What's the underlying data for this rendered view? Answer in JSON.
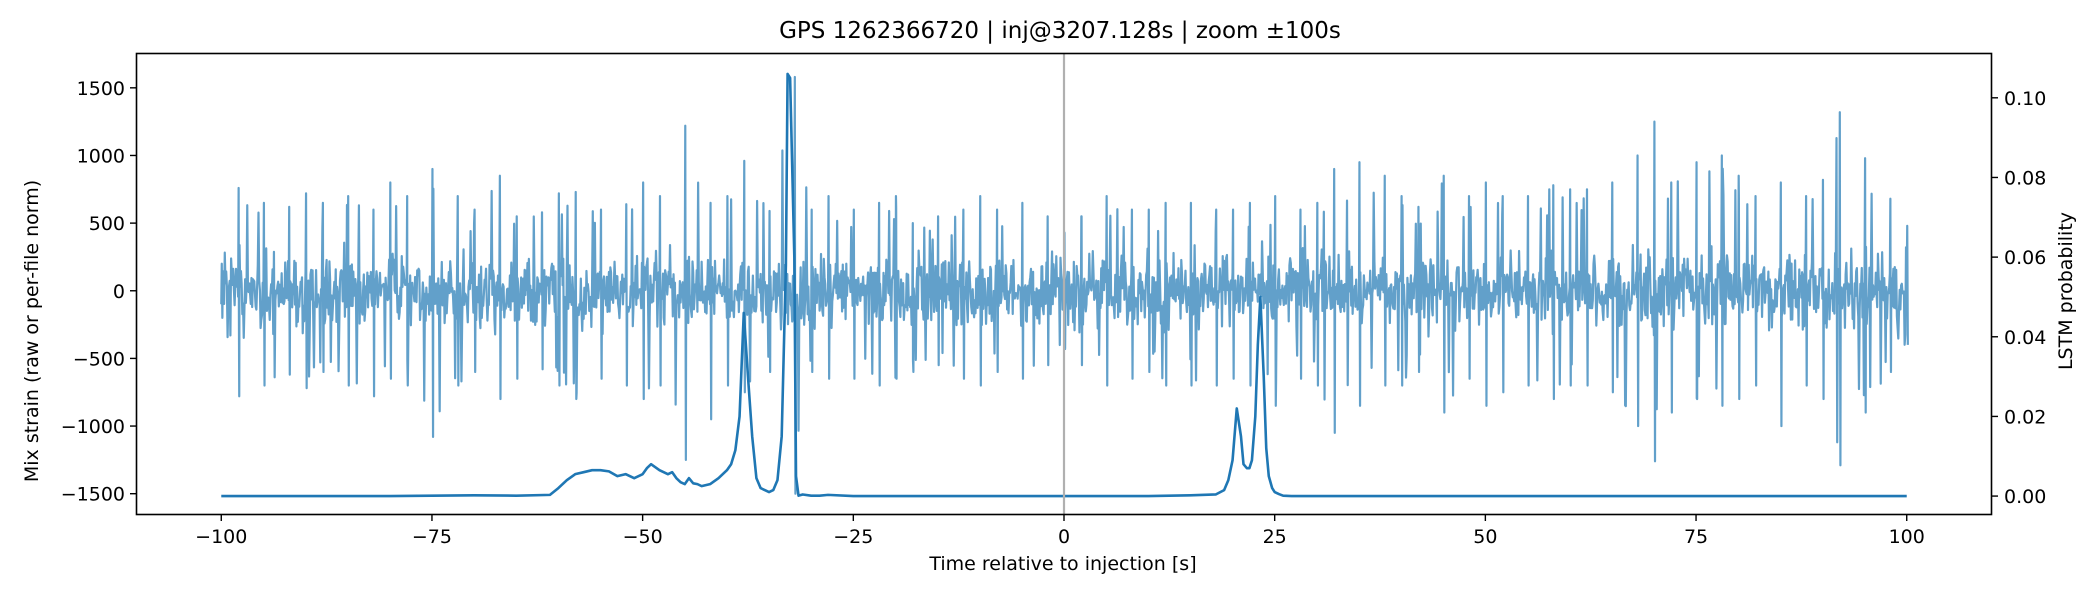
{
  "chart_data": {
    "type": "line",
    "title": "GPS 1262366720 | inj@3207.128s | zoom ±100s",
    "xlabel": "Time relative to injection [s]",
    "ylabel_left": "Mix strain (raw or per-file norm)",
    "ylabel_right": "LSTM probability",
    "xlim": [
      -110,
      110
    ],
    "ylim_left": [
      -1650,
      1750
    ],
    "ylim_right": [
      -0.0045,
      0.111
    ],
    "xticks": [
      -100,
      -75,
      -50,
      -25,
      0,
      25,
      50,
      75,
      100
    ],
    "xtick_labels": [
      "−100",
      "−75",
      "−50",
      "−25",
      "0",
      "25",
      "50",
      "75",
      "100"
    ],
    "yticks_left": [
      -1500,
      -1000,
      -500,
      0,
      500,
      1000,
      1500
    ],
    "ytick_labels_left": [
      "−1500",
      "−1000",
      "−500",
      "0",
      "500",
      "1000",
      "1500"
    ],
    "yticks_right": [
      0.0,
      0.02,
      0.04,
      0.06,
      0.08,
      0.1
    ],
    "ytick_labels_right": [
      "0.00",
      "0.02",
      "0.04",
      "0.06",
      "0.08",
      "0.10"
    ],
    "vline_x": 0,
    "grid": false,
    "colors": {
      "strain": "#1f77b4",
      "strain_opacity": 0.7,
      "lstm": "#1f77b4",
      "vline": "#b0b0b0"
    },
    "series": [
      {
        "axis": "left",
        "x_range": [
          -100,
          100
        ],
        "sample_count": 2400,
        "typical_amplitude": 300,
        "envelope": {
          "x": [
            -100,
            -98,
            -95,
            -92,
            -90,
            -88,
            -85,
            -82,
            -80,
            -78,
            -75,
            -72,
            -70,
            -67,
            -65,
            -62,
            -60,
            -58,
            -55,
            -52,
            -50,
            -48,
            -45,
            -42,
            -40,
            -38,
            -35,
            -32,
            -30,
            -28,
            -25,
            -22,
            -20,
            -18,
            -15,
            -12,
            -10,
            -8,
            -5,
            -2,
            0,
            2,
            5,
            8,
            10,
            12,
            15,
            18,
            20,
            22,
            25,
            28,
            30,
            32,
            35,
            38,
            40,
            42,
            45,
            48,
            50,
            52,
            55,
            58,
            60,
            62,
            65,
            68,
            70,
            72,
            75,
            78,
            80,
            82,
            85,
            88,
            90,
            92,
            95,
            98,
            100
          ],
          "upper": [
            200,
            760,
            650,
            620,
            720,
            650,
            700,
            600,
            800,
            700,
            900,
            700,
            600,
            850,
            550,
            580,
            720,
            730,
            600,
            640,
            800,
            700,
            1220,
            650,
            700,
            960,
            590,
            1580,
            600,
            700,
            600,
            650,
            700,
            500,
            550,
            600,
            700,
            600,
            650,
            550,
            430,
            550,
            700,
            600,
            600,
            650,
            650,
            600,
            600,
            650,
            700,
            600,
            650,
            900,
            950,
            850,
            700,
            620,
            850,
            700,
            800,
            700,
            700,
            780,
            750,
            750,
            800,
            1000,
            1250,
            800,
            950,
            1000,
            850,
            700,
            800,
            700,
            820,
            1320,
            980,
            680,
            480
          ],
          "lower": [
            -200,
            -780,
            -700,
            -620,
            -720,
            -600,
            -700,
            -780,
            -650,
            -700,
            -1080,
            -700,
            -600,
            -800,
            -650,
            -580,
            -700,
            -800,
            -650,
            -700,
            -800,
            -700,
            -1250,
            -950,
            -700,
            -750,
            -600,
            -1500,
            -600,
            -650,
            -650,
            -700,
            -650,
            -600,
            -550,
            -650,
            -700,
            -600,
            -650,
            -550,
            -430,
            -550,
            -700,
            -650,
            -600,
            -700,
            -700,
            -700,
            -650,
            -700,
            -850,
            -650,
            -700,
            -1050,
            -850,
            -700,
            -700,
            -600,
            -900,
            -650,
            -850,
            -750,
            -700,
            -800,
            -700,
            -700,
            -750,
            -1000,
            -1260,
            -900,
            -800,
            -850,
            -800,
            -700,
            -1000,
            -700,
            -800,
            -1290,
            -900,
            -600,
            -400
          ]
        }
      },
      {
        "axis": "right",
        "x": [
          -100,
          -90,
          -80,
          -70,
          -65,
          -61,
          -60,
          -59,
          -58,
          -57,
          -56,
          -55,
          -54,
          -53,
          -52,
          -51,
          -50,
          -49.5,
          -49,
          -48,
          -47,
          -46.5,
          -46,
          -45.5,
          -45,
          -44.5,
          -44,
          -43.5,
          -43,
          -42,
          -41,
          -40,
          -39.5,
          -39,
          -38.5,
          -38,
          -37.5,
          -37,
          -36.5,
          -36,
          -35,
          -34.5,
          -34,
          -33.5,
          -33,
          -32.8,
          -32.5,
          -32,
          -31.8,
          -31.5,
          -31,
          -30,
          -29,
          -28,
          -25,
          -20,
          -10,
          0,
          10,
          15,
          18,
          19,
          19.5,
          20,
          20.5,
          21,
          21.3,
          21.7,
          22,
          22.3,
          22.7,
          23,
          23.3,
          23.7,
          24,
          24.3,
          24.7,
          25,
          25.5,
          26,
          27,
          30,
          40,
          50,
          60,
          70,
          80,
          90,
          100
        ],
        "y": [
          0.0,
          0.0,
          0.0,
          0.0002,
          0.0001,
          0.0003,
          0.002,
          0.004,
          0.0055,
          0.006,
          0.0065,
          0.0065,
          0.0062,
          0.005,
          0.0055,
          0.0045,
          0.0055,
          0.007,
          0.008,
          0.0065,
          0.0055,
          0.006,
          0.0045,
          0.0035,
          0.003,
          0.0045,
          0.0032,
          0.003,
          0.0025,
          0.003,
          0.0045,
          0.0065,
          0.008,
          0.0115,
          0.02,
          0.046,
          0.03,
          0.015,
          0.0045,
          0.002,
          0.001,
          0.0015,
          0.004,
          0.015,
          0.058,
          0.106,
          0.105,
          0.06,
          0.005,
          0.0001,
          0.0004,
          0.0001,
          0.0001,
          0.0003,
          0.0,
          0.0,
          0.0,
          0.0,
          0.0,
          0.0002,
          0.0004,
          0.0015,
          0.004,
          0.009,
          0.022,
          0.015,
          0.008,
          0.007,
          0.007,
          0.009,
          0.02,
          0.038,
          0.05,
          0.03,
          0.012,
          0.005,
          0.002,
          0.001,
          0.0005,
          0.0001,
          0.0,
          0.0,
          0.0,
          0.0,
          0.0,
          0.0,
          0.0,
          0.0,
          0.0
        ]
      }
    ]
  }
}
